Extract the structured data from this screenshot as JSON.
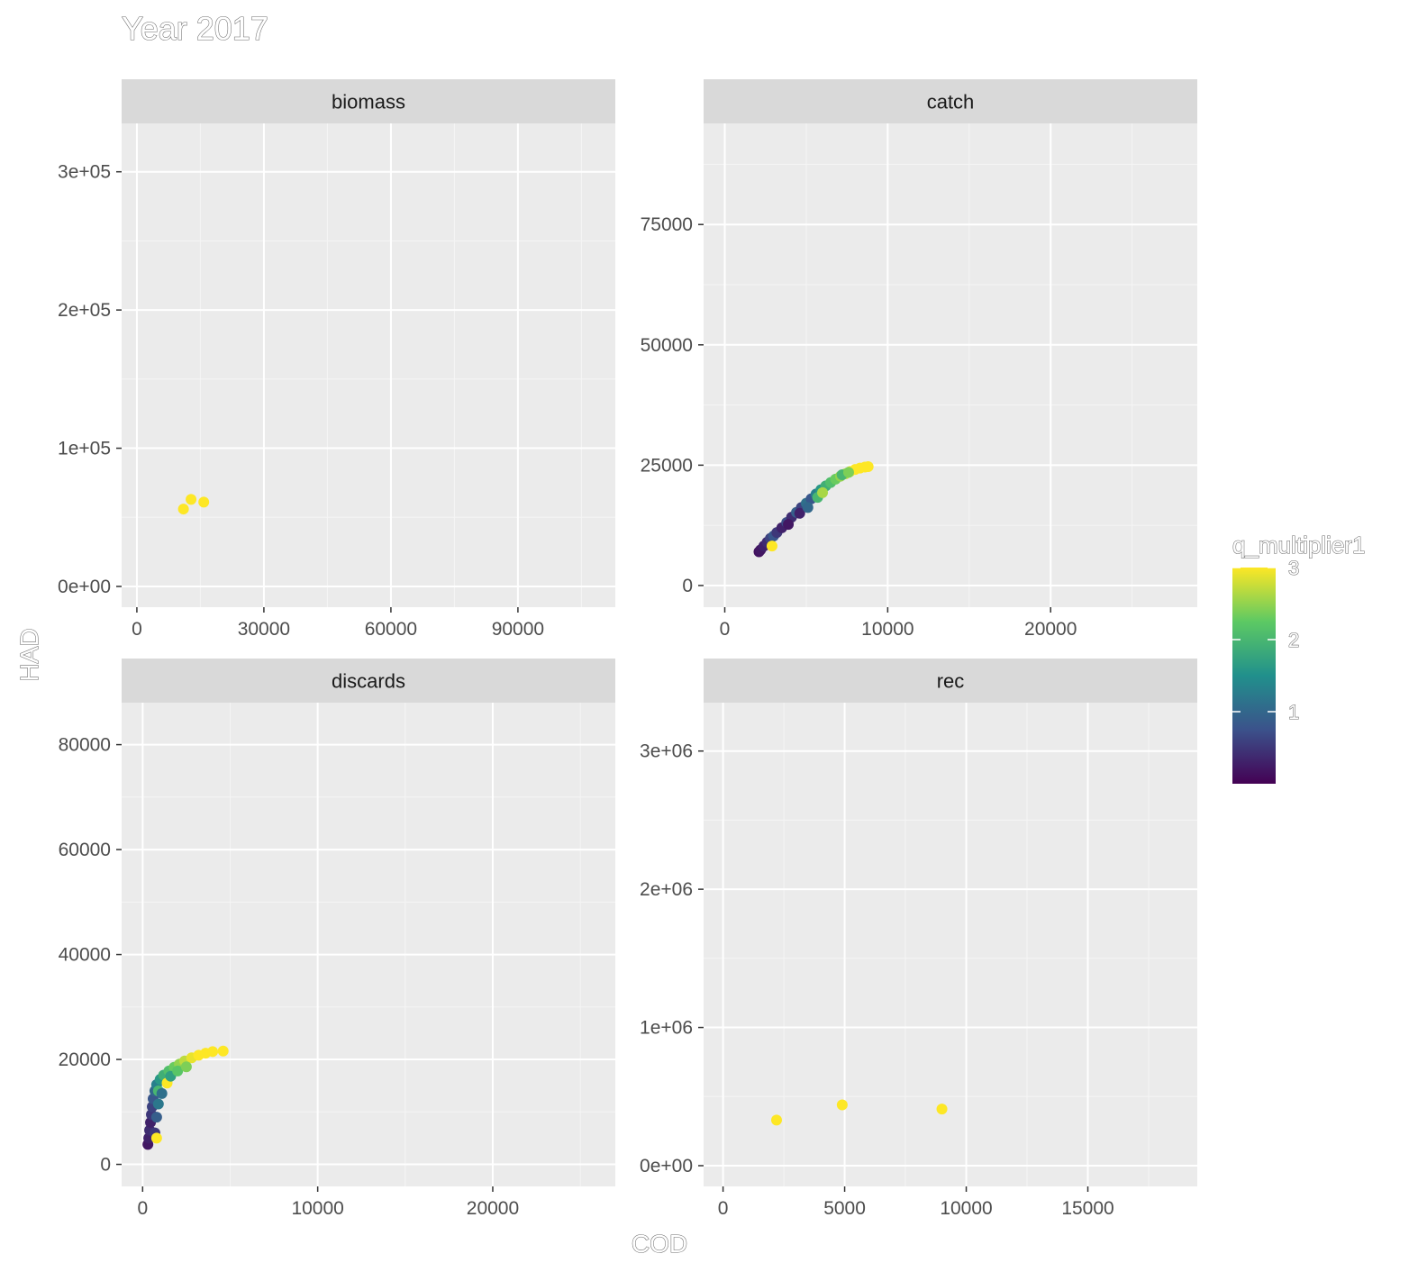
{
  "title": "Year 2017",
  "xlabel": "COD",
  "ylabel": "HAD",
  "legend": {
    "title": "q_multiplier1",
    "ticks": [
      1,
      2,
      3
    ],
    "colors": [
      "#440154",
      "#3b528b",
      "#21908c",
      "#5dc963",
      "#fde725"
    ]
  },
  "chart_data": [
    {
      "panel": "biomass",
      "type": "scatter",
      "xlim": [
        -3600,
        113000
      ],
      "ylim": [
        -15000,
        335000
      ],
      "xticks": [
        0,
        30000,
        60000,
        90000
      ],
      "xtick_labels": [
        "0",
        "30000",
        "60000",
        "90000"
      ],
      "yticks": [
        0,
        100000,
        200000,
        300000
      ],
      "ytick_labels": [
        "0e+00",
        "1e+05",
        "2e+05",
        "3e+05"
      ],
      "grid": true,
      "points": [
        {
          "x": 11000,
          "y": 56000,
          "c": 3.0
        },
        {
          "x": 12800,
          "y": 63000,
          "c": 3.0
        },
        {
          "x": 15800,
          "y": 61000,
          "c": 3.0
        }
      ]
    },
    {
      "panel": "catch",
      "type": "scatter",
      "xlim": [
        -1300,
        29000
      ],
      "ylim": [
        -4500,
        96000
      ],
      "xticks": [
        0,
        10000,
        20000
      ],
      "xtick_labels": [
        "0",
        "10000",
        "20000"
      ],
      "yticks": [
        0,
        25000,
        50000,
        75000
      ],
      "ytick_labels": [
        "0",
        "25000",
        "50000",
        "75000"
      ],
      "grid": true,
      "points": [
        {
          "x": 2100,
          "y": 7000,
          "c": 0.15
        },
        {
          "x": 2200,
          "y": 7400,
          "c": 0.2
        },
        {
          "x": 2400,
          "y": 8200,
          "c": 0.3
        },
        {
          "x": 2600,
          "y": 9000,
          "c": 0.4
        },
        {
          "x": 2800,
          "y": 9800,
          "c": 0.6
        },
        {
          "x": 3000,
          "y": 10300,
          "c": 0.8
        },
        {
          "x": 3200,
          "y": 11000,
          "c": 0.5
        },
        {
          "x": 3500,
          "y": 12000,
          "c": 0.3
        },
        {
          "x": 3800,
          "y": 13100,
          "c": 0.7
        },
        {
          "x": 4100,
          "y": 14200,
          "c": 0.4
        },
        {
          "x": 4400,
          "y": 15200,
          "c": 0.9
        },
        {
          "x": 4700,
          "y": 16200,
          "c": 0.6
        },
        {
          "x": 5000,
          "y": 17100,
          "c": 1.1
        },
        {
          "x": 5300,
          "y": 18000,
          "c": 0.8
        },
        {
          "x": 5600,
          "y": 19000,
          "c": 1.3
        },
        {
          "x": 5900,
          "y": 19900,
          "c": 1.6
        },
        {
          "x": 6200,
          "y": 20700,
          "c": 1.9
        },
        {
          "x": 6500,
          "y": 21400,
          "c": 2.1
        },
        {
          "x": 6800,
          "y": 22100,
          "c": 2.3
        },
        {
          "x": 7100,
          "y": 22700,
          "c": 2.5
        },
        {
          "x": 7400,
          "y": 23200,
          "c": 2.7
        },
        {
          "x": 7700,
          "y": 23700,
          "c": 2.9
        },
        {
          "x": 8000,
          "y": 24100,
          "c": 3.0
        },
        {
          "x": 8300,
          "y": 24400,
          "c": 3.0
        },
        {
          "x": 8600,
          "y": 24600,
          "c": 3.0
        },
        {
          "x": 8800,
          "y": 24700,
          "c": 3.0
        },
        {
          "x": 3900,
          "y": 12700,
          "c": 0.2
        },
        {
          "x": 4600,
          "y": 15000,
          "c": 0.3
        },
        {
          "x": 5100,
          "y": 16200,
          "c": 1.0
        },
        {
          "x": 5700,
          "y": 18300,
          "c": 2.0
        },
        {
          "x": 6000,
          "y": 19300,
          "c": 2.6
        },
        {
          "x": 2900,
          "y": 8200,
          "c": 3.0
        },
        {
          "x": 7200,
          "y": 23000,
          "c": 2.0
        },
        {
          "x": 7600,
          "y": 23500,
          "c": 2.4
        }
      ]
    },
    {
      "panel": "discards",
      "type": "scatter",
      "xlim": [
        -1200,
        27000
      ],
      "ylim": [
        -4200,
        88000
      ],
      "xticks": [
        0,
        10000,
        20000
      ],
      "xtick_labels": [
        "0",
        "10000",
        "20000"
      ],
      "yticks": [
        0,
        20000,
        40000,
        60000,
        80000
      ],
      "ytick_labels": [
        "0",
        "20000",
        "40000",
        "60000",
        "80000"
      ],
      "grid": true,
      "points": [
        {
          "x": 300,
          "y": 3800,
          "c": 0.2
        },
        {
          "x": 350,
          "y": 5000,
          "c": 0.3
        },
        {
          "x": 400,
          "y": 6500,
          "c": 0.4
        },
        {
          "x": 450,
          "y": 8000,
          "c": 0.3
        },
        {
          "x": 500,
          "y": 9500,
          "c": 0.5
        },
        {
          "x": 550,
          "y": 11000,
          "c": 0.6
        },
        {
          "x": 600,
          "y": 12500,
          "c": 0.8
        },
        {
          "x": 700,
          "y": 14000,
          "c": 1.0
        },
        {
          "x": 800,
          "y": 15200,
          "c": 1.3
        },
        {
          "x": 1000,
          "y": 16200,
          "c": 1.6
        },
        {
          "x": 1200,
          "y": 17000,
          "c": 1.9
        },
        {
          "x": 1500,
          "y": 17800,
          "c": 2.1
        },
        {
          "x": 1800,
          "y": 18500,
          "c": 2.3
        },
        {
          "x": 2100,
          "y": 19100,
          "c": 2.5
        },
        {
          "x": 2400,
          "y": 19700,
          "c": 2.7
        },
        {
          "x": 2800,
          "y": 20300,
          "c": 2.9
        },
        {
          "x": 3200,
          "y": 20800,
          "c": 3.0
        },
        {
          "x": 3600,
          "y": 21200,
          "c": 3.0
        },
        {
          "x": 4000,
          "y": 21500,
          "c": 3.0
        },
        {
          "x": 4600,
          "y": 21600,
          "c": 3.0
        },
        {
          "x": 700,
          "y": 6000,
          "c": 0.5
        },
        {
          "x": 800,
          "y": 9000,
          "c": 0.9
        },
        {
          "x": 900,
          "y": 11500,
          "c": 1.2
        },
        {
          "x": 900,
          "y": 14000,
          "c": 2.0
        },
        {
          "x": 1400,
          "y": 15500,
          "c": 3.0
        },
        {
          "x": 800,
          "y": 5000,
          "c": 3.0
        },
        {
          "x": 1100,
          "y": 13500,
          "c": 1.1
        },
        {
          "x": 1600,
          "y": 16800,
          "c": 1.7
        },
        {
          "x": 2000,
          "y": 17800,
          "c": 2.2
        },
        {
          "x": 2500,
          "y": 18600,
          "c": 2.4
        }
      ]
    },
    {
      "panel": "rec",
      "type": "scatter",
      "xlim": [
        -800,
        19500
      ],
      "ylim": [
        -150000,
        3350000
      ],
      "xticks": [
        0,
        5000,
        10000,
        15000
      ],
      "xtick_labels": [
        "0",
        "5000",
        "10000",
        "15000"
      ],
      "yticks": [
        0,
        1000000,
        2000000,
        3000000
      ],
      "ytick_labels": [
        "0e+00",
        "1e+06",
        "2e+06",
        "3e+06"
      ],
      "grid": true,
      "points": [
        {
          "x": 2200,
          "y": 330000,
          "c": 3.0
        },
        {
          "x": 4900,
          "y": 440000,
          "c": 3.0
        },
        {
          "x": 9000,
          "y": 410000,
          "c": 3.0
        }
      ]
    }
  ]
}
